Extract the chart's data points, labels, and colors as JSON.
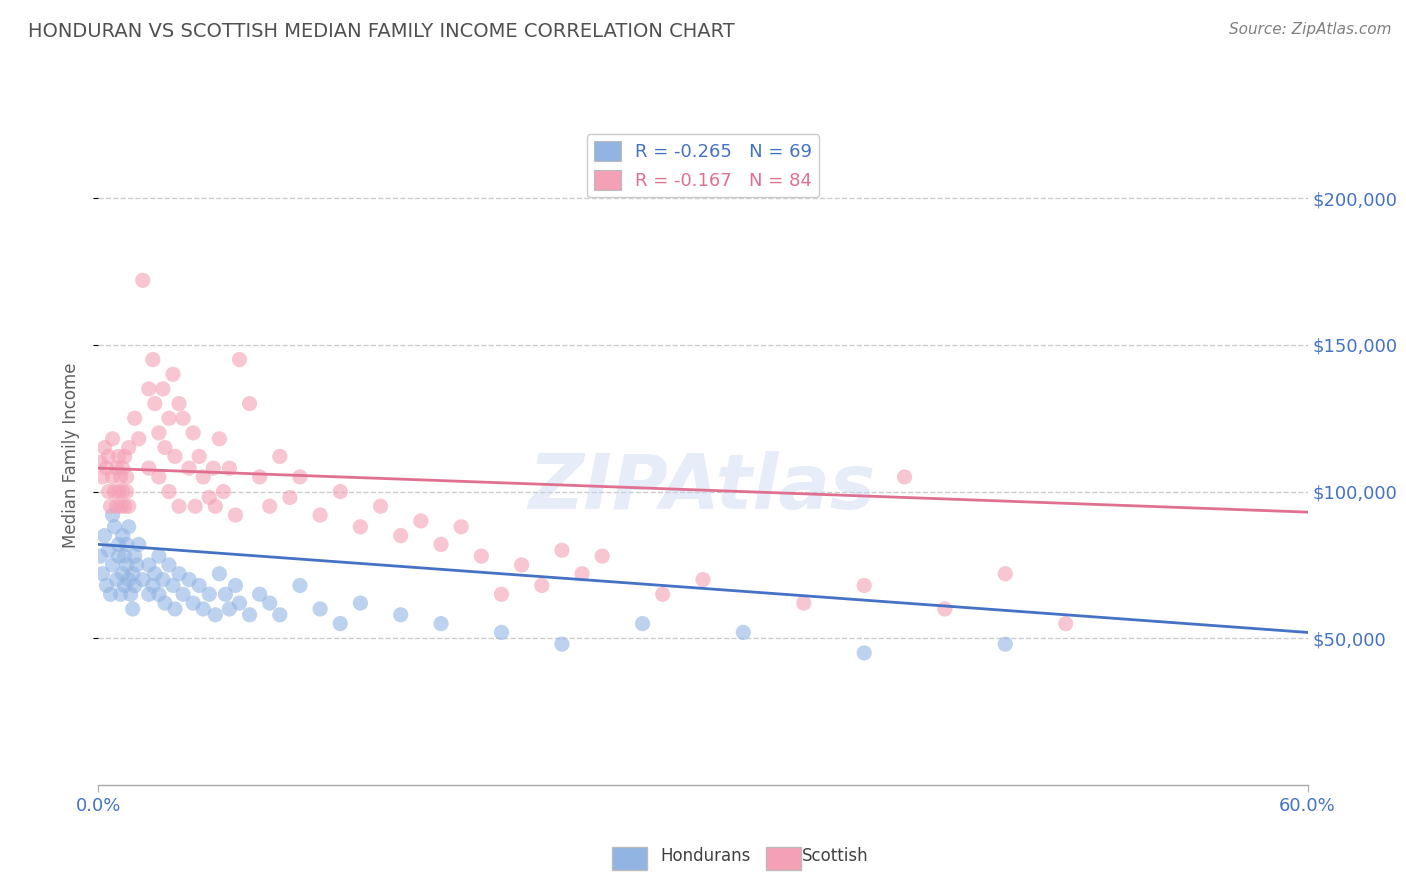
{
  "title": "HONDURAN VS SCOTTISH MEDIAN FAMILY INCOME CORRELATION CHART",
  "source": "Source: ZipAtlas.com",
  "watermark": "ZIPAtlas",
  "ylabel": "Median Family Income",
  "xlim": [
    0.0,
    0.6
  ],
  "ylim": [
    0,
    225000
  ],
  "ytick_labels": [
    "$50,000",
    "$100,000",
    "$150,000",
    "$200,000"
  ],
  "ytick_values": [
    50000,
    100000,
    150000,
    200000
  ],
  "honduran_color": "#92b4e3",
  "scottish_color": "#f4a0b5",
  "honduran_line_color": "#4472c4",
  "scottish_line_color": "#e07090",
  "r_honduran": -0.265,
  "n_honduran": 69,
  "r_scottish": -0.167,
  "n_scottish": 84,
  "honduran_scatter": [
    [
      0.001,
      78000
    ],
    [
      0.002,
      72000
    ],
    [
      0.003,
      85000
    ],
    [
      0.004,
      68000
    ],
    [
      0.005,
      80000
    ],
    [
      0.006,
      65000
    ],
    [
      0.007,
      92000
    ],
    [
      0.007,
      75000
    ],
    [
      0.008,
      88000
    ],
    [
      0.009,
      70000
    ],
    [
      0.01,
      82000
    ],
    [
      0.01,
      78000
    ],
    [
      0.011,
      65000
    ],
    [
      0.012,
      85000
    ],
    [
      0.012,
      72000
    ],
    [
      0.013,
      78000
    ],
    [
      0.013,
      68000
    ],
    [
      0.014,
      75000
    ],
    [
      0.014,
      82000
    ],
    [
      0.015,
      70000
    ],
    [
      0.015,
      88000
    ],
    [
      0.016,
      65000
    ],
    [
      0.017,
      72000
    ],
    [
      0.017,
      60000
    ],
    [
      0.018,
      78000
    ],
    [
      0.018,
      68000
    ],
    [
      0.019,
      75000
    ],
    [
      0.02,
      82000
    ],
    [
      0.022,
      70000
    ],
    [
      0.025,
      65000
    ],
    [
      0.025,
      75000
    ],
    [
      0.027,
      68000
    ],
    [
      0.028,
      72000
    ],
    [
      0.03,
      65000
    ],
    [
      0.03,
      78000
    ],
    [
      0.032,
      70000
    ],
    [
      0.033,
      62000
    ],
    [
      0.035,
      75000
    ],
    [
      0.037,
      68000
    ],
    [
      0.038,
      60000
    ],
    [
      0.04,
      72000
    ],
    [
      0.042,
      65000
    ],
    [
      0.045,
      70000
    ],
    [
      0.047,
      62000
    ],
    [
      0.05,
      68000
    ],
    [
      0.052,
      60000
    ],
    [
      0.055,
      65000
    ],
    [
      0.058,
      58000
    ],
    [
      0.06,
      72000
    ],
    [
      0.063,
      65000
    ],
    [
      0.065,
      60000
    ],
    [
      0.068,
      68000
    ],
    [
      0.07,
      62000
    ],
    [
      0.075,
      58000
    ],
    [
      0.08,
      65000
    ],
    [
      0.085,
      62000
    ],
    [
      0.09,
      58000
    ],
    [
      0.1,
      68000
    ],
    [
      0.11,
      60000
    ],
    [
      0.12,
      55000
    ],
    [
      0.13,
      62000
    ],
    [
      0.15,
      58000
    ],
    [
      0.17,
      55000
    ],
    [
      0.2,
      52000
    ],
    [
      0.23,
      48000
    ],
    [
      0.27,
      55000
    ],
    [
      0.32,
      52000
    ],
    [
      0.38,
      45000
    ],
    [
      0.45,
      48000
    ]
  ],
  "scottish_scatter": [
    [
      0.001,
      110000
    ],
    [
      0.002,
      105000
    ],
    [
      0.003,
      115000
    ],
    [
      0.004,
      108000
    ],
    [
      0.005,
      100000
    ],
    [
      0.005,
      112000
    ],
    [
      0.006,
      95000
    ],
    [
      0.007,
      105000
    ],
    [
      0.007,
      118000
    ],
    [
      0.008,
      100000
    ],
    [
      0.009,
      108000
    ],
    [
      0.009,
      95000
    ],
    [
      0.01,
      112000
    ],
    [
      0.01,
      100000
    ],
    [
      0.011,
      105000
    ],
    [
      0.011,
      95000
    ],
    [
      0.012,
      100000
    ],
    [
      0.012,
      108000
    ],
    [
      0.013,
      95000
    ],
    [
      0.013,
      112000
    ],
    [
      0.014,
      100000
    ],
    [
      0.014,
      105000
    ],
    [
      0.015,
      95000
    ],
    [
      0.015,
      115000
    ],
    [
      0.018,
      125000
    ],
    [
      0.02,
      118000
    ],
    [
      0.022,
      172000
    ],
    [
      0.025,
      135000
    ],
    [
      0.025,
      108000
    ],
    [
      0.027,
      145000
    ],
    [
      0.028,
      130000
    ],
    [
      0.03,
      120000
    ],
    [
      0.03,
      105000
    ],
    [
      0.032,
      135000
    ],
    [
      0.033,
      115000
    ],
    [
      0.035,
      125000
    ],
    [
      0.035,
      100000
    ],
    [
      0.037,
      140000
    ],
    [
      0.038,
      112000
    ],
    [
      0.04,
      130000
    ],
    [
      0.04,
      95000
    ],
    [
      0.042,
      125000
    ],
    [
      0.045,
      108000
    ],
    [
      0.047,
      120000
    ],
    [
      0.048,
      95000
    ],
    [
      0.05,
      112000
    ],
    [
      0.052,
      105000
    ],
    [
      0.055,
      98000
    ],
    [
      0.057,
      108000
    ],
    [
      0.058,
      95000
    ],
    [
      0.06,
      118000
    ],
    [
      0.062,
      100000
    ],
    [
      0.065,
      108000
    ],
    [
      0.068,
      92000
    ],
    [
      0.07,
      145000
    ],
    [
      0.075,
      130000
    ],
    [
      0.08,
      105000
    ],
    [
      0.085,
      95000
    ],
    [
      0.09,
      112000
    ],
    [
      0.095,
      98000
    ],
    [
      0.1,
      105000
    ],
    [
      0.11,
      92000
    ],
    [
      0.12,
      100000
    ],
    [
      0.13,
      88000
    ],
    [
      0.14,
      95000
    ],
    [
      0.15,
      85000
    ],
    [
      0.16,
      90000
    ],
    [
      0.17,
      82000
    ],
    [
      0.18,
      88000
    ],
    [
      0.19,
      78000
    ],
    [
      0.2,
      65000
    ],
    [
      0.21,
      75000
    ],
    [
      0.22,
      68000
    ],
    [
      0.23,
      80000
    ],
    [
      0.24,
      72000
    ],
    [
      0.25,
      78000
    ],
    [
      0.28,
      65000
    ],
    [
      0.3,
      70000
    ],
    [
      0.35,
      62000
    ],
    [
      0.38,
      68000
    ],
    [
      0.4,
      105000
    ],
    [
      0.42,
      60000
    ],
    [
      0.45,
      72000
    ],
    [
      0.48,
      55000
    ]
  ],
  "bg_color": "#ffffff",
  "grid_color": "#cccccc",
  "title_color": "#505050",
  "axis_label_color": "#606060",
  "ytick_color": "#4472c4",
  "xtick_color": "#4472c4",
  "source_color": "#808080"
}
